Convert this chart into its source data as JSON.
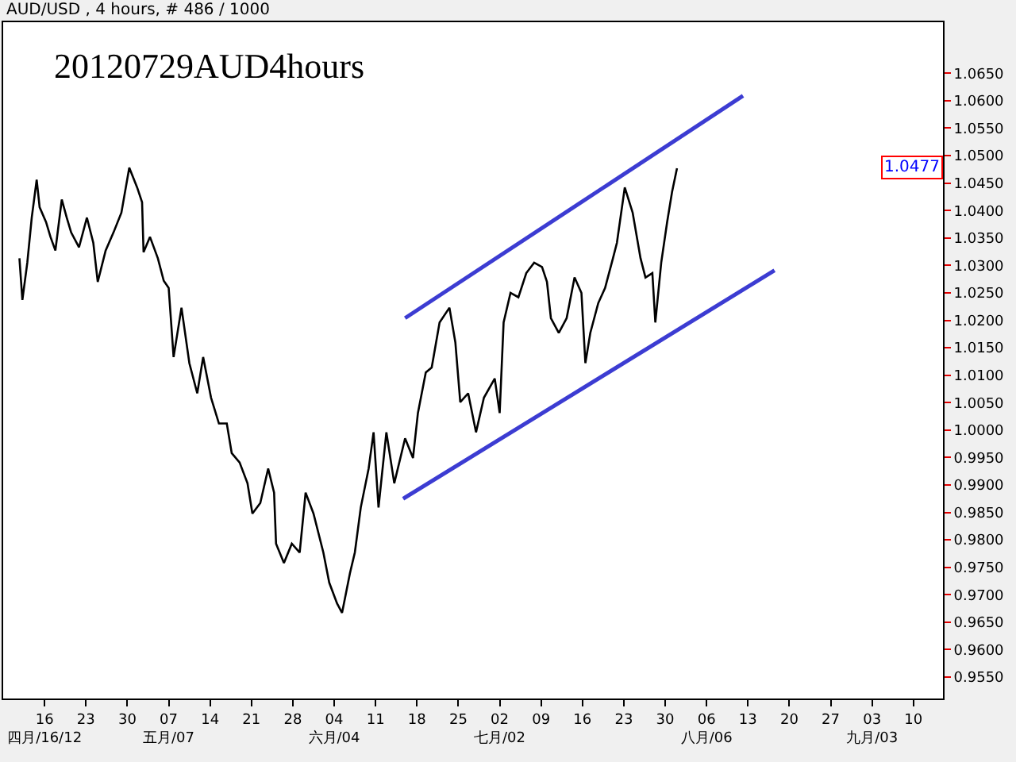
{
  "chart_data": {
    "type": "line",
    "title": "AUD/USD , 4 hours, # 486 / 1000",
    "subtitle": "20120729AUD4hours",
    "series": [
      {
        "color": "#000000",
        "x": [
          "2012-04-11T18:00",
          "2012-04-12T06:00",
          "2012-04-13T02:00",
          "2012-04-13T20:00",
          "2012-04-14T16:00",
          "2012-04-15T04:00",
          "2012-04-16T06:00",
          "2012-04-17T00:00",
          "2012-04-17T20:00",
          "2012-04-18T22:00",
          "2012-04-19T18:00",
          "2012-04-20T12:00",
          "2012-04-21T20:00",
          "2012-04-23T04:00",
          "2012-04-24T06:00",
          "2012-04-25T00:00",
          "2012-04-26T08:00",
          "2012-04-27T16:00",
          "2012-04-29T00:00",
          "2012-04-30T08:00",
          "2012-05-01T16:00",
          "2012-05-02T12:00",
          "2012-05-02T18:00",
          "2012-05-03T20:00",
          "2012-05-05T04:00",
          "2012-05-06T04:00",
          "2012-05-07T00:00",
          "2012-05-07T20:00",
          "2012-05-09T04:00",
          "2012-05-10T12:00",
          "2012-05-11T20:00",
          "2012-05-12T20:00",
          "2012-05-14T04:00",
          "2012-05-15T12:00",
          "2012-05-16T20:00",
          "2012-05-17T16:00",
          "2012-05-19T00:00",
          "2012-05-20T08:00",
          "2012-05-21T04:00",
          "2012-05-22T12:00",
          "2012-05-23T20:00",
          "2012-05-24T20:00",
          "2012-05-25T04:00",
          "2012-05-26T12:00",
          "2012-05-27T20:00",
          "2012-05-29T04:00",
          "2012-05-30T04:00",
          "2012-05-31T12:00",
          "2012-06-02T04:00",
          "2012-06-03T04:00",
          "2012-06-04T12:00",
          "2012-06-05T08:00",
          "2012-06-06T16:00",
          "2012-06-07T12:00",
          "2012-06-08T12:00",
          "2012-06-09T20:00",
          "2012-06-10T16:00",
          "2012-06-11T12:00",
          "2012-06-12T20:00",
          "2012-06-14T04:00",
          "2012-06-16T00:00",
          "2012-06-17T08:00",
          "2012-06-18T04:00",
          "2012-06-19T12:00",
          "2012-06-20T12:00",
          "2012-06-21T20:00",
          "2012-06-23T12:00",
          "2012-06-24T12:00",
          "2012-06-25T08:00",
          "2012-06-26T16:00",
          "2012-06-28T00:00",
          "2012-06-29T08:00",
          "2012-07-01T04:00",
          "2012-07-02T00:00",
          "2012-07-02T16:00",
          "2012-07-03T20:00",
          "2012-07-05T04:00",
          "2012-07-06T12:00",
          "2012-07-07T20:00",
          "2012-07-09T04:00",
          "2012-07-10T00:00",
          "2012-07-10T16:00",
          "2012-07-12T00:00",
          "2012-07-13T08:00",
          "2012-07-14T16:00",
          "2012-07-15T20:00",
          "2012-07-16T12:00",
          "2012-07-17T08:00",
          "2012-07-18T16:00",
          "2012-07-19T20:00",
          "2012-07-21T04:00",
          "2012-07-21T20:00",
          "2012-07-23T04:00",
          "2012-07-24T12:00",
          "2012-07-25T20:00",
          "2012-07-26T16:00",
          "2012-07-27T20:00",
          "2012-07-28T08:00",
          "2012-07-29T08:00",
          "2012-07-30T08:00",
          "2012-07-31T04:00",
          "2012-08-01T00:00"
        ],
        "values": [
          1.0313,
          1.0237,
          1.0305,
          1.0387,
          1.0456,
          1.0406,
          1.0379,
          1.0352,
          1.0327,
          1.042,
          1.0387,
          1.036,
          1.0333,
          1.0387,
          1.0341,
          1.027,
          1.0327,
          1.036,
          1.0396,
          1.0478,
          1.0442,
          1.0415,
          1.0324,
          1.0352,
          1.0313,
          1.0272,
          1.0259,
          1.0133,
          1.0223,
          1.0122,
          1.0067,
          1.0133,
          1.0059,
          1.0012,
          1.0012,
          0.9958,
          0.9941,
          0.9903,
          0.9848,
          0.9867,
          0.993,
          0.9886,
          0.9793,
          0.9758,
          0.9793,
          0.9777,
          0.9886,
          0.9848,
          0.9777,
          0.9722,
          0.9684,
          0.9667,
          0.9739,
          0.9777,
          0.9859,
          0.993,
          0.9996,
          0.9859,
          0.9996,
          0.9903,
          0.9985,
          0.9949,
          1.0031,
          1.0105,
          1.0114,
          1.0196,
          1.0223,
          1.016,
          1.0051,
          1.0067,
          0.9996,
          1.0059,
          1.0094,
          1.0031,
          1.0196,
          1.025,
          1.0242,
          1.0286,
          1.0305,
          1.0297,
          1.027,
          1.0204,
          1.0177,
          1.0204,
          1.0278,
          1.025,
          1.0122,
          1.0177,
          1.0231,
          1.0259,
          1.0313,
          1.0341,
          1.0442,
          1.0396,
          1.0313,
          1.0278,
          1.0286,
          1.0196,
          1.0305,
          1.0379,
          1.0434,
          1.0477
        ]
      },
      {
        "type": "line",
        "color": "#3c3cd2",
        "x": [
          "2012-06-16T00:00",
          "2012-08-12T04:00"
        ],
        "values": [
          1.0204,
          1.0609
        ]
      },
      {
        "type": "line",
        "color": "#3c3cd2",
        "x": [
          "2012-06-15T16:00",
          "2012-08-17T12:00"
        ],
        "values": [
          0.9875,
          1.0291
        ]
      }
    ],
    "annotations": [
      {
        "text": "1.0477",
        "y": 1.0477
      }
    ],
    "xlim": [
      "2012-04-09",
      "2012-09-15"
    ],
    "xticks": [
      {
        "value": "2012-04-16",
        "label": "16\n四月/16/12"
      },
      {
        "value": "2012-04-23",
        "label": "23"
      },
      {
        "value": "2012-04-30",
        "label": "30"
      },
      {
        "value": "2012-05-07",
        "label": "07\n五月/07"
      },
      {
        "value": "2012-05-14",
        "label": "14"
      },
      {
        "value": "2012-05-21",
        "label": "21"
      },
      {
        "value": "2012-05-28",
        "label": "28"
      },
      {
        "value": "2012-06-04",
        "label": "04\n六月/04"
      },
      {
        "value": "2012-06-11",
        "label": "11"
      },
      {
        "value": "2012-06-18",
        "label": "18"
      },
      {
        "value": "2012-06-25",
        "label": "25"
      },
      {
        "value": "2012-07-02",
        "label": "02\n七月/02"
      },
      {
        "value": "2012-07-09",
        "label": "09"
      },
      {
        "value": "2012-07-16",
        "label": "16"
      },
      {
        "value": "2012-07-23",
        "label": "23"
      },
      {
        "value": "2012-07-30",
        "label": "30"
      },
      {
        "value": "2012-08-06",
        "label": "06\n八月/06"
      },
      {
        "value": "2012-08-13",
        "label": "13"
      },
      {
        "value": "2012-08-20",
        "label": "20"
      },
      {
        "value": "2012-08-27",
        "label": "27"
      },
      {
        "value": "2012-09-03",
        "label": "03\n九月/03"
      },
      {
        "value": "2012-09-10",
        "label": "10"
      }
    ],
    "ylim": [
      0.9511,
      1.0743
    ],
    "yticks": [
      {
        "value": 0.955,
        "label": "0.9550"
      },
      {
        "value": 0.96,
        "label": "0.9600"
      },
      {
        "value": 0.965,
        "label": "0.9650"
      },
      {
        "value": 0.97,
        "label": "0.9700"
      },
      {
        "value": 0.975,
        "label": "0.9750"
      },
      {
        "value": 0.98,
        "label": "0.9800"
      },
      {
        "value": 0.985,
        "label": "0.9850"
      },
      {
        "value": 0.99,
        "label": "0.9900"
      },
      {
        "value": 0.995,
        "label": "0.9950"
      },
      {
        "value": 1.0,
        "label": "1.0000"
      },
      {
        "value": 1.005,
        "label": "1.0050"
      },
      {
        "value": 1.01,
        "label": "1.0100"
      },
      {
        "value": 1.015,
        "label": "1.0150"
      },
      {
        "value": 1.02,
        "label": "1.0200"
      },
      {
        "value": 1.025,
        "label": "1.0250"
      },
      {
        "value": 1.03,
        "label": "1.0300"
      },
      {
        "value": 1.035,
        "label": "1.0350"
      },
      {
        "value": 1.04,
        "label": "1.0400"
      },
      {
        "value": 1.045,
        "label": "1.0450"
      },
      {
        "value": 1.05,
        "label": "1.0500"
      },
      {
        "value": 1.055,
        "label": "1.0550"
      },
      {
        "value": 1.06,
        "label": "1.0600"
      },
      {
        "value": 1.065,
        "label": "1.0650"
      }
    ],
    "marker": "none"
  }
}
